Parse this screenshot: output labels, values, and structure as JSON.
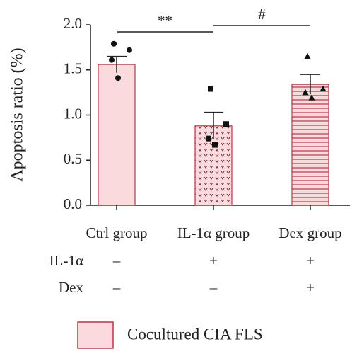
{
  "chart_data": {
    "type": "bar",
    "y_label": "Apoptosis ratio (%)",
    "categories": [
      "Ctrl group",
      "IL-1α group",
      "Dex group"
    ],
    "series": [
      {
        "name": "Cocultured CIA FLS",
        "color": "#fbdadd",
        "edge_color": "#b03a48",
        "values": [
          1.56,
          0.88,
          1.34
        ],
        "errors": [
          0.09,
          0.15,
          0.11
        ],
        "points": [
          [
            1.79,
            1.72,
            1.61,
            1.41
          ],
          [
            1.29,
            0.9,
            0.74,
            0.67
          ],
          [
            1.65,
            1.29,
            1.25,
            1.19
          ]
        ]
      }
    ],
    "bar_patterns": [
      "solid",
      "chevrons",
      "horizontal-lines"
    ],
    "markers": [
      "circle",
      "square",
      "triangle"
    ],
    "ylim": [
      0,
      2
    ],
    "yticks": [
      {
        "value": 0,
        "label": "0.0"
      },
      0.5,
      {
        "value": 1,
        "label": "1.0"
      },
      1.5,
      {
        "value": 2,
        "label": "2.0"
      }
    ],
    "annotations": [
      "**",
      "#"
    ],
    "conditions": [
      {
        "label": "IL-1α",
        "values": [
          "–",
          "+",
          "+"
        ]
      },
      {
        "label": "Dex",
        "values": [
          "–",
          "–",
          "+"
        ]
      }
    ]
  }
}
